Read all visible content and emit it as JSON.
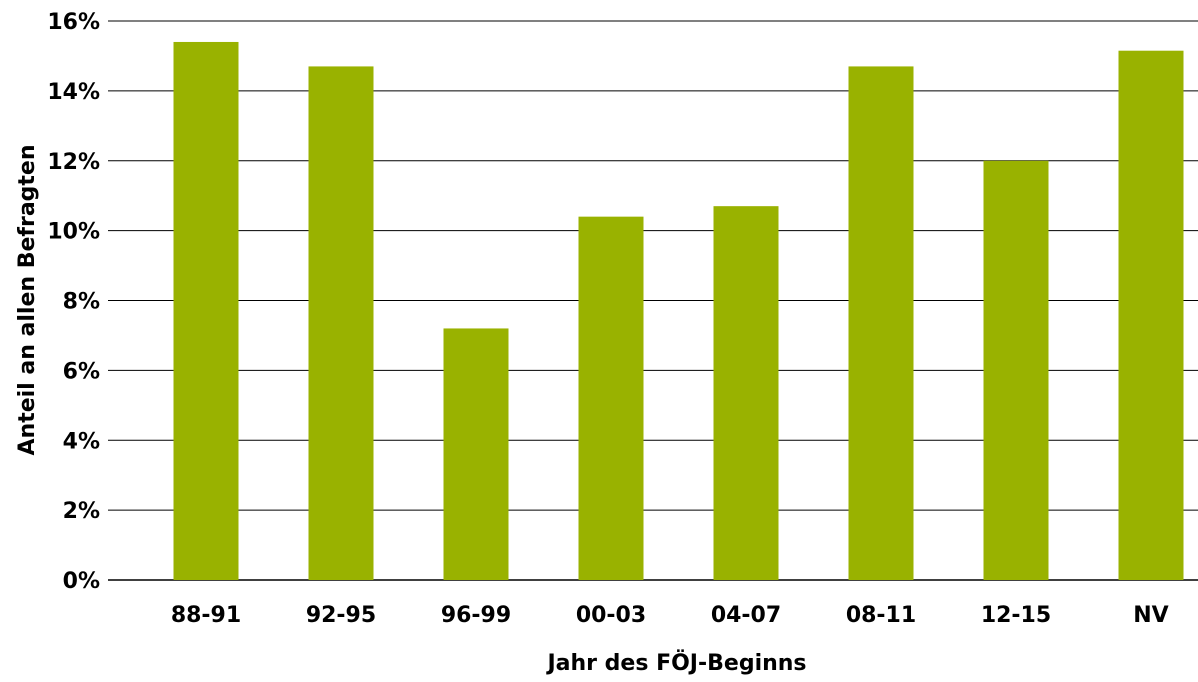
{
  "chart_data": {
    "type": "bar",
    "title": "",
    "xlabel": "Jahr des FÖJ-Beginns",
    "ylabel": "Anteil an allen Befragten",
    "categories": [
      "88-91",
      "92-95",
      "96-99",
      "00-03",
      "04-07",
      "08-11",
      "12-15",
      "NV"
    ],
    "values": [
      15.4,
      14.7,
      7.2,
      10.4,
      10.7,
      14.7,
      12.0,
      15.15
    ],
    "unit": "%",
    "ylim": [
      0,
      16
    ],
    "yticks": [
      "0%",
      "2%",
      "4%",
      "6%",
      "8%",
      "10%",
      "12%",
      "14%",
      "16%"
    ],
    "grid": true,
    "bar_color": "#99b200",
    "grid_color": "#000000"
  }
}
